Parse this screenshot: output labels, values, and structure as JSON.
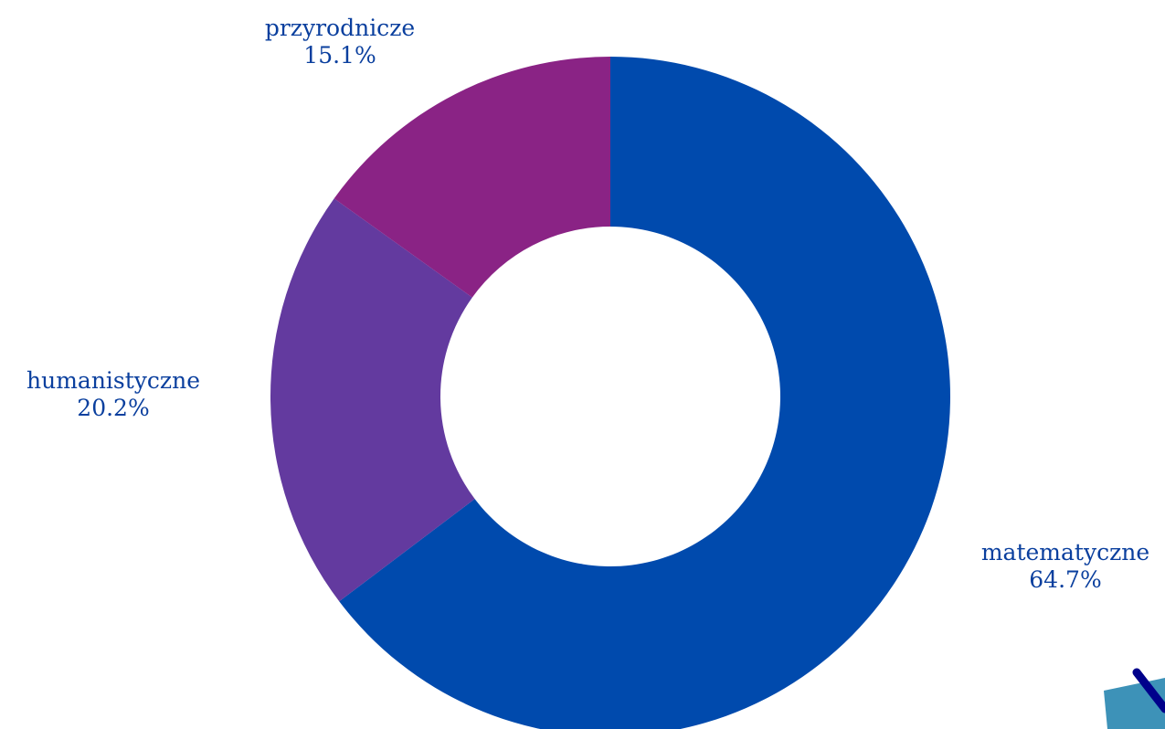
{
  "chart_data": {
    "type": "pie",
    "donut": true,
    "title": "",
    "legend": "none",
    "slices": [
      {
        "label": "matematyczne",
        "value": 64.7,
        "display": "64.7%",
        "color": "#004aad"
      },
      {
        "label": "humanistyczne",
        "value": 20.2,
        "display": "20.2%",
        "color": "#633a9f"
      },
      {
        "label": "przyrodnicze",
        "value": 15.1,
        "display": "15.1%",
        "color": "#8a2385"
      }
    ]
  },
  "colors": {
    "label_text": "#0a3f9e",
    "background": "#ffffff",
    "decoration_fill": "#3d92b8",
    "decoration_stroke": "#00008b"
  }
}
